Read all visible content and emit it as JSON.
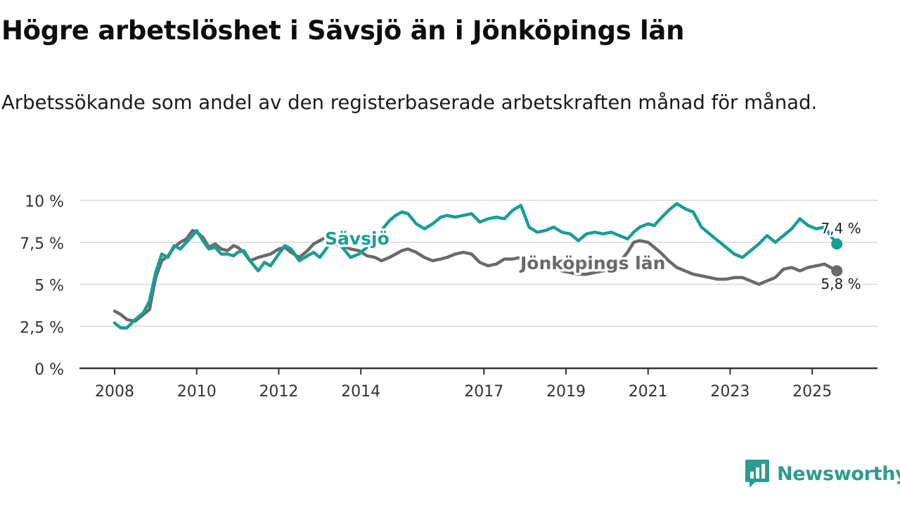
{
  "title": "Högre arbetslöshet i Sävsjö än i Jönköpings län",
  "subtitle": "Arbetssökande som andel av den registerbaserade arbetskraften månad för månad.",
  "brand": {
    "name": "Newsworthy",
    "icon": "newsworthy-logo-icon",
    "color": "#2a9d8f"
  },
  "chart_data": {
    "type": "line",
    "xlim": [
      2008,
      2025.7
    ],
    "ylim": [
      0,
      10
    ],
    "y_ticks": [
      {
        "value": 0,
        "label": "0 %"
      },
      {
        "value": 2.5,
        "label": "2,5 %"
      },
      {
        "value": 5,
        "label": "5 %"
      },
      {
        "value": 7.5,
        "label": "7,5 %"
      },
      {
        "value": 10,
        "label": "10 %"
      }
    ],
    "x_ticks": [
      {
        "value": 2008,
        "label": "2008"
      },
      {
        "value": 2010,
        "label": "2010"
      },
      {
        "value": 2012,
        "label": "2012"
      },
      {
        "value": 2014,
        "label": "2014"
      },
      {
        "value": 2017,
        "label": "2017"
      },
      {
        "value": 2019,
        "label": "2019"
      },
      {
        "value": 2021,
        "label": "2021"
      },
      {
        "value": 2023,
        "label": "2023"
      },
      {
        "value": 2025,
        "label": "2025"
      }
    ],
    "grid": true,
    "series": [
      {
        "name": "Sävsjö",
        "label": "Sävsjö",
        "color": "#1a9e93",
        "end_label": "7,4 %",
        "x": [
          2008.0,
          2008.15,
          2008.3,
          2008.5,
          2008.7,
          2008.85,
          2009.0,
          2009.15,
          2009.3,
          2009.45,
          2009.6,
          2009.75,
          2009.9,
          2010.0,
          2010.15,
          2010.3,
          2010.45,
          2010.6,
          2010.75,
          2010.9,
          2011.0,
          2011.15,
          2011.3,
          2011.5,
          2011.65,
          2011.8,
          2012.0,
          2012.15,
          2012.3,
          2012.5,
          2012.7,
          2012.85,
          2013.0,
          2013.15,
          2013.35,
          2013.55,
          2013.75,
          2013.95,
          2014.15,
          2014.35,
          2014.5,
          2014.7,
          2014.85,
          2015.0,
          2015.15,
          2015.35,
          2015.55,
          2015.75,
          2015.95,
          2016.1,
          2016.3,
          2016.5,
          2016.7,
          2016.9,
          2017.1,
          2017.3,
          2017.5,
          2017.7,
          2017.9,
          2018.1,
          2018.3,
          2018.5,
          2018.7,
          2018.9,
          2019.1,
          2019.3,
          2019.5,
          2019.7,
          2019.9,
          2020.1,
          2020.3,
          2020.5,
          2020.65,
          2020.8,
          2021.0,
          2021.15,
          2021.3,
          2021.5,
          2021.7,
          2021.9,
          2022.1,
          2022.3,
          2022.5,
          2022.7,
          2022.9,
          2023.1,
          2023.3,
          2023.5,
          2023.7,
          2023.9,
          2024.1,
          2024.3,
          2024.5,
          2024.7,
          2024.9,
          2025.1,
          2025.3,
          2025.45,
          2025.6
        ],
        "y": [
          2.7,
          2.4,
          2.4,
          2.9,
          3.3,
          4.0,
          5.7,
          6.8,
          6.6,
          7.3,
          7.1,
          7.5,
          7.9,
          8.2,
          7.6,
          7.1,
          7.2,
          6.8,
          6.8,
          6.7,
          6.9,
          7.0,
          6.4,
          5.8,
          6.3,
          6.1,
          6.8,
          7.3,
          7.1,
          6.4,
          6.7,
          6.9,
          6.6,
          7.1,
          7.7,
          7.2,
          6.6,
          6.8,
          7.2,
          7.6,
          8.2,
          8.8,
          9.1,
          9.3,
          9.2,
          8.6,
          8.3,
          8.6,
          9.0,
          9.1,
          9.0,
          9.1,
          9.2,
          8.7,
          8.9,
          9.0,
          8.9,
          9.4,
          9.7,
          8.4,
          8.1,
          8.2,
          8.4,
          8.1,
          8.0,
          7.6,
          8.0,
          8.1,
          8.0,
          8.1,
          7.9,
          7.7,
          8.1,
          8.4,
          8.6,
          8.5,
          8.9,
          9.4,
          9.8,
          9.5,
          9.3,
          8.4,
          8.0,
          7.6,
          7.2,
          6.8,
          6.6,
          7.0,
          7.4,
          7.9,
          7.5,
          7.9,
          8.3,
          8.9,
          8.5,
          8.3,
          8.4,
          7.9,
          7.4
        ]
      },
      {
        "name": "Jönköpings län",
        "label": "Jönköpings län",
        "color": "#6a6a6d",
        "end_label": "5,8 %",
        "x": [
          2008.0,
          2008.15,
          2008.3,
          2008.5,
          2008.7,
          2008.85,
          2009.0,
          2009.15,
          2009.3,
          2009.45,
          2009.6,
          2009.75,
          2009.9,
          2010.0,
          2010.15,
          2010.3,
          2010.45,
          2010.6,
          2010.75,
          2010.9,
          2011.0,
          2011.15,
          2011.3,
          2011.5,
          2011.65,
          2011.8,
          2012.0,
          2012.15,
          2012.3,
          2012.5,
          2012.7,
          2012.85,
          2013.0,
          2013.15,
          2013.35,
          2013.55,
          2013.75,
          2013.95,
          2014.15,
          2014.35,
          2014.5,
          2014.7,
          2014.85,
          2015.0,
          2015.15,
          2015.35,
          2015.55,
          2015.75,
          2015.95,
          2016.1,
          2016.3,
          2016.5,
          2016.7,
          2016.9,
          2017.1,
          2017.3,
          2017.5,
          2017.7,
          2017.9,
          2018.1,
          2018.3,
          2018.5,
          2018.7,
          2018.9,
          2019.1,
          2019.3,
          2019.5,
          2019.7,
          2019.9,
          2020.1,
          2020.3,
          2020.5,
          2020.65,
          2020.8,
          2021.0,
          2021.15,
          2021.3,
          2021.5,
          2021.7,
          2021.9,
          2022.1,
          2022.3,
          2022.5,
          2022.7,
          2022.9,
          2023.1,
          2023.3,
          2023.5,
          2023.7,
          2023.9,
          2024.1,
          2024.3,
          2024.5,
          2024.7,
          2024.9,
          2025.1,
          2025.3,
          2025.45,
          2025.6
        ],
        "y": [
          3.4,
          3.2,
          2.9,
          2.8,
          3.2,
          3.5,
          5.4,
          6.4,
          6.7,
          7.2,
          7.5,
          7.7,
          8.2,
          8.1,
          7.8,
          7.2,
          7.4,
          7.1,
          7.0,
          7.3,
          7.2,
          6.9,
          6.4,
          6.6,
          6.7,
          6.8,
          7.1,
          7.2,
          6.9,
          6.6,
          7.0,
          7.4,
          7.6,
          7.8,
          7.4,
          7.3,
          7.1,
          7.0,
          6.7,
          6.6,
          6.4,
          6.6,
          6.8,
          7.0,
          7.1,
          6.9,
          6.6,
          6.4,
          6.5,
          6.6,
          6.8,
          6.9,
          6.8,
          6.3,
          6.1,
          6.2,
          6.5,
          6.5,
          6.6,
          6.4,
          6.2,
          6.1,
          6.0,
          5.8,
          5.7,
          5.6,
          5.6,
          5.7,
          5.8,
          5.9,
          6.3,
          6.9,
          7.5,
          7.6,
          7.5,
          7.2,
          6.9,
          6.4,
          6.0,
          5.8,
          5.6,
          5.5,
          5.4,
          5.3,
          5.3,
          5.4,
          5.4,
          5.2,
          5.0,
          5.2,
          5.4,
          5.9,
          6.0,
          5.8,
          6.0,
          6.1,
          6.2,
          6.0,
          5.8
        ]
      }
    ]
  }
}
